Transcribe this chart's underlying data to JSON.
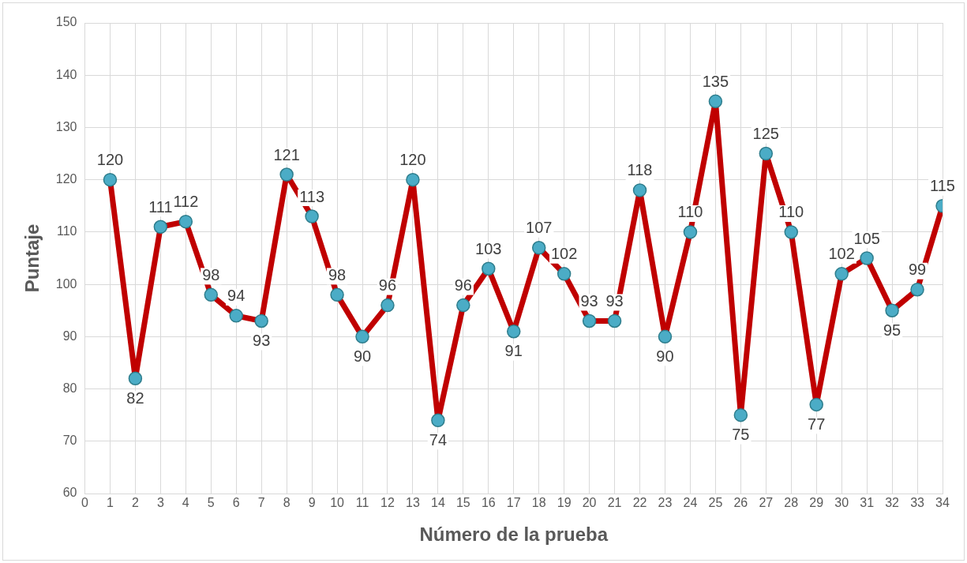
{
  "chart_data": {
    "type": "line",
    "xlabel": "Número de la prueba",
    "ylabel": "Puntaje",
    "x": [
      1,
      2,
      3,
      4,
      5,
      6,
      7,
      8,
      9,
      10,
      11,
      12,
      13,
      14,
      15,
      16,
      17,
      18,
      19,
      20,
      21,
      22,
      23,
      24,
      25,
      26,
      27,
      28,
      29,
      30,
      31,
      32,
      33,
      34
    ],
    "series": [
      {
        "color": "#c00000",
        "values": [
          120,
          82,
          111,
          112,
          98,
          94,
          93,
          121,
          113,
          98,
          90,
          96,
          120,
          74,
          96,
          103,
          91,
          107,
          102,
          93,
          93,
          118,
          90,
          110,
          135,
          75,
          125,
          110,
          77,
          102,
          105,
          95,
          99,
          115
        ]
      }
    ],
    "xlim": [
      0,
      34
    ],
    "xticks": [
      0,
      1,
      2,
      3,
      4,
      5,
      6,
      7,
      8,
      9,
      10,
      11,
      12,
      13,
      14,
      15,
      16,
      17,
      18,
      19,
      20,
      21,
      22,
      23,
      24,
      25,
      26,
      27,
      28,
      29,
      30,
      31,
      32,
      33,
      34
    ],
    "ylim": [
      60,
      150
    ],
    "yticks": [
      60,
      70,
      80,
      90,
      100,
      110,
      120,
      130,
      140,
      150
    ],
    "grid": true,
    "legend": false,
    "marker": "circle",
    "line_style": "solid",
    "data_labels": true
  }
}
